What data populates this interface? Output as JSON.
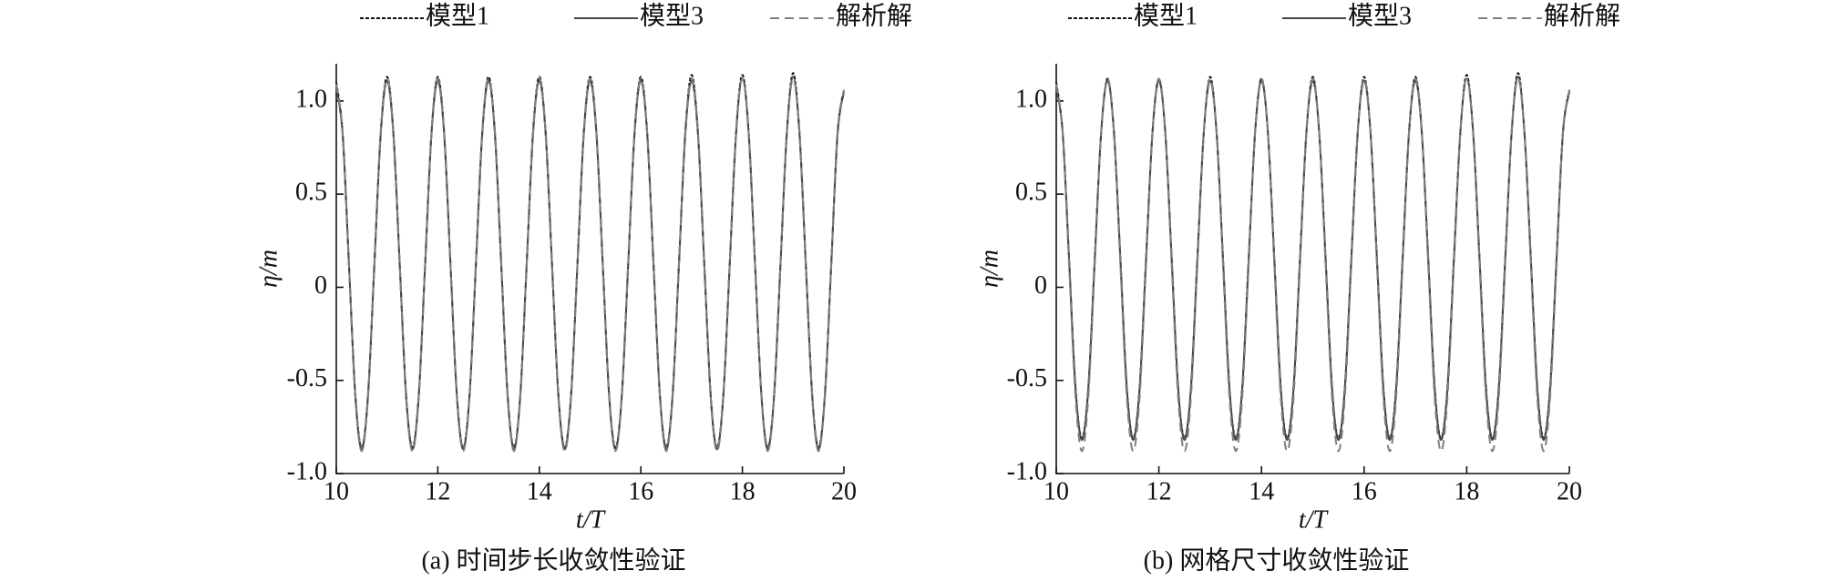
{
  "chart_data": [
    {
      "type": "line",
      "caption": "(a) 时间步长收敛性验证",
      "xlabel": "t/T",
      "ylabel": "η/m",
      "xlim": [
        10,
        20
      ],
      "ylim": [
        -1,
        1.2
      ],
      "xticks": [
        10,
        12,
        14,
        16,
        18,
        20
      ],
      "yticks": [
        {
          "value": -1,
          "label": "-1.0"
        },
        -0.5,
        0,
        0.5,
        {
          "value": 1,
          "label": "1.0"
        }
      ],
      "x": [
        10,
        10.125,
        10.25,
        10.375,
        10.5,
        10.625,
        10.75,
        10.875,
        11,
        11.125,
        11.25,
        11.375,
        11.5,
        11.625,
        11.75,
        11.875,
        12,
        12.125,
        12.25,
        12.375,
        12.5,
        12.625,
        12.75,
        12.875,
        13,
        13.125,
        13.25,
        13.375,
        13.5,
        13.625,
        13.75,
        13.875,
        14,
        14.125,
        14.25,
        14.375,
        14.5,
        14.625,
        14.75,
        14.875,
        15,
        15.125,
        15.25,
        15.375,
        15.5,
        15.625,
        15.75,
        15.875,
        16,
        16.125,
        16.25,
        16.375,
        16.5,
        16.625,
        16.75,
        16.875,
        17,
        17.125,
        17.25,
        17.375,
        17.5,
        17.625,
        17.75,
        17.875,
        18,
        18.125,
        18.25,
        18.375,
        18.5,
        18.625,
        18.75,
        18.875,
        19,
        19.125,
        19.25,
        19.375,
        19.5,
        19.625,
        19.75,
        19.875,
        20
      ],
      "series": [
        {
          "name": "模型1",
          "color": "#111111",
          "dash": "4 2",
          "values": [
            1.1,
            0.83,
            0.12,
            -0.58,
            -0.86,
            -0.58,
            0.12,
            0.83,
            1.13,
            0.83,
            0.12,
            -0.58,
            -0.86,
            -0.58,
            0.12,
            0.83,
            1.13,
            0.83,
            0.12,
            -0.58,
            -0.86,
            -0.58,
            0.12,
            0.83,
            1.13,
            0.83,
            0.12,
            -0.58,
            -0.86,
            -0.58,
            0.12,
            0.83,
            1.13,
            0.83,
            0.12,
            -0.58,
            -0.86,
            -0.58,
            0.12,
            0.83,
            1.13,
            0.83,
            0.12,
            -0.58,
            -0.86,
            -0.58,
            0.12,
            0.83,
            1.13,
            0.83,
            0.12,
            -0.58,
            -0.86,
            -0.58,
            0.12,
            0.83,
            1.14,
            0.83,
            0.12,
            -0.58,
            -0.86,
            -0.58,
            0.12,
            0.83,
            1.14,
            0.83,
            0.12,
            -0.58,
            -0.86,
            -0.58,
            0.12,
            0.83,
            1.15,
            0.83,
            0.12,
            -0.58,
            -0.86,
            -0.58,
            0.12,
            0.83,
            1.06
          ]
        },
        {
          "name": "模型3",
          "color": "#444a4c",
          "dash": "",
          "values": [
            1.08,
            0.82,
            0.12,
            -0.58,
            -0.87,
            -0.58,
            0.12,
            0.82,
            1.11,
            0.82,
            0.12,
            -0.58,
            -0.87,
            -0.58,
            0.12,
            0.82,
            1.11,
            0.82,
            0.12,
            -0.58,
            -0.87,
            -0.58,
            0.12,
            0.82,
            1.11,
            0.82,
            0.12,
            -0.58,
            -0.87,
            -0.58,
            0.12,
            0.82,
            1.11,
            0.82,
            0.12,
            -0.58,
            -0.87,
            -0.58,
            0.12,
            0.82,
            1.11,
            0.82,
            0.12,
            -0.58,
            -0.87,
            -0.58,
            0.12,
            0.82,
            1.11,
            0.82,
            0.12,
            -0.58,
            -0.87,
            -0.58,
            0.12,
            0.82,
            1.11,
            0.82,
            0.12,
            -0.58,
            -0.87,
            -0.58,
            0.12,
            0.82,
            1.12,
            0.82,
            0.12,
            -0.58,
            -0.87,
            -0.58,
            0.12,
            0.82,
            1.13,
            0.82,
            0.12,
            -0.58,
            -0.87,
            -0.58,
            0.12,
            0.82,
            1.05
          ]
        },
        {
          "name": "解析解",
          "color": "#7a8088",
          "dash": "10 6",
          "values": [
            1.09,
            0.83,
            0.12,
            -0.59,
            -0.88,
            -0.59,
            0.12,
            0.83,
            1.12,
            0.83,
            0.12,
            -0.59,
            -0.88,
            -0.59,
            0.12,
            0.83,
            1.12,
            0.83,
            0.12,
            -0.59,
            -0.88,
            -0.59,
            0.12,
            0.83,
            1.12,
            0.83,
            0.12,
            -0.59,
            -0.88,
            -0.59,
            0.12,
            0.83,
            1.12,
            0.83,
            0.12,
            -0.59,
            -0.88,
            -0.59,
            0.12,
            0.83,
            1.12,
            0.83,
            0.12,
            -0.59,
            -0.88,
            -0.59,
            0.12,
            0.83,
            1.12,
            0.83,
            0.12,
            -0.59,
            -0.88,
            -0.59,
            0.12,
            0.83,
            1.12,
            0.83,
            0.12,
            -0.59,
            -0.88,
            -0.59,
            0.12,
            0.83,
            1.12,
            0.83,
            0.12,
            -0.59,
            -0.88,
            -0.59,
            0.12,
            0.83,
            1.12,
            0.83,
            0.12,
            -0.59,
            -0.88,
            -0.59,
            0.12,
            0.83,
            1.06
          ]
        }
      ]
    },
    {
      "type": "line",
      "caption": "(b) 网格尺寸收敛性验证",
      "xlabel": "t/T",
      "ylabel": "η/m",
      "xlim": [
        10,
        20
      ],
      "ylim": [
        -1,
        1.2
      ],
      "xticks": [
        10,
        12,
        14,
        16,
        18,
        20
      ],
      "yticks": [
        {
          "value": -1,
          "label": "-1.0"
        },
        -0.5,
        0,
        0.5,
        {
          "value": 1,
          "label": "1.0"
        }
      ],
      "x": [
        10,
        10.125,
        10.25,
        10.375,
        10.5,
        10.625,
        10.75,
        10.875,
        11,
        11.125,
        11.25,
        11.375,
        11.5,
        11.625,
        11.75,
        11.875,
        12,
        12.125,
        12.25,
        12.375,
        12.5,
        12.625,
        12.75,
        12.875,
        13,
        13.125,
        13.25,
        13.375,
        13.5,
        13.625,
        13.75,
        13.875,
        14,
        14.125,
        14.25,
        14.375,
        14.5,
        14.625,
        14.75,
        14.875,
        15,
        15.125,
        15.25,
        15.375,
        15.5,
        15.625,
        15.75,
        15.875,
        16,
        16.125,
        16.25,
        16.375,
        16.5,
        16.625,
        16.75,
        16.875,
        17,
        17.125,
        17.25,
        17.375,
        17.5,
        17.625,
        17.75,
        17.875,
        18,
        18.125,
        18.25,
        18.375,
        18.5,
        18.625,
        18.75,
        18.875,
        19,
        19.125,
        19.25,
        19.375,
        19.5,
        19.625,
        19.75,
        19.875,
        20
      ],
      "series": [
        {
          "name": "模型1",
          "color": "#111111",
          "dash": "4 2",
          "values": [
            1.1,
            0.83,
            0.15,
            -0.54,
            -0.81,
            -0.54,
            0.15,
            0.83,
            1.12,
            0.83,
            0.15,
            -0.54,
            -0.81,
            -0.54,
            0.15,
            0.83,
            1.12,
            0.83,
            0.15,
            -0.54,
            -0.81,
            -0.54,
            0.15,
            0.83,
            1.13,
            0.83,
            0.15,
            -0.54,
            -0.81,
            -0.54,
            0.15,
            0.83,
            1.12,
            0.83,
            0.15,
            -0.54,
            -0.81,
            -0.54,
            0.15,
            0.83,
            1.13,
            0.83,
            0.15,
            -0.54,
            -0.81,
            -0.54,
            0.15,
            0.83,
            1.13,
            0.83,
            0.15,
            -0.54,
            -0.81,
            -0.54,
            0.15,
            0.83,
            1.13,
            0.83,
            0.15,
            -0.54,
            -0.81,
            -0.54,
            0.15,
            0.83,
            1.14,
            0.83,
            0.15,
            -0.54,
            -0.81,
            -0.54,
            0.15,
            0.83,
            1.15,
            0.83,
            0.15,
            -0.54,
            -0.81,
            -0.54,
            0.15,
            0.83,
            1.06
          ]
        },
        {
          "name": "模型3",
          "color": "#444a4c",
          "dash": "",
          "values": [
            1.08,
            0.83,
            0.15,
            -0.54,
            -0.82,
            -0.54,
            0.15,
            0.83,
            1.11,
            0.83,
            0.15,
            -0.54,
            -0.82,
            -0.54,
            0.15,
            0.83,
            1.11,
            0.83,
            0.15,
            -0.54,
            -0.82,
            -0.54,
            0.15,
            0.83,
            1.11,
            0.83,
            0.15,
            -0.54,
            -0.82,
            -0.54,
            0.15,
            0.83,
            1.11,
            0.83,
            0.15,
            -0.54,
            -0.82,
            -0.54,
            0.15,
            0.83,
            1.11,
            0.83,
            0.15,
            -0.54,
            -0.82,
            -0.54,
            0.15,
            0.83,
            1.11,
            0.83,
            0.15,
            -0.54,
            -0.82,
            -0.54,
            0.15,
            0.83,
            1.11,
            0.83,
            0.15,
            -0.54,
            -0.82,
            -0.54,
            0.15,
            0.83,
            1.12,
            0.83,
            0.15,
            -0.54,
            -0.82,
            -0.54,
            0.15,
            0.83,
            1.13,
            0.83,
            0.15,
            -0.54,
            -0.82,
            -0.54,
            0.15,
            0.83,
            1.05
          ]
        },
        {
          "name": "解析解",
          "color": "#7a8088",
          "dash": "10 6",
          "values": [
            1.09,
            0.83,
            0.12,
            -0.59,
            -0.88,
            -0.59,
            0.12,
            0.83,
            1.12,
            0.83,
            0.12,
            -0.59,
            -0.88,
            -0.59,
            0.12,
            0.83,
            1.12,
            0.83,
            0.12,
            -0.59,
            -0.88,
            -0.59,
            0.12,
            0.83,
            1.12,
            0.83,
            0.12,
            -0.59,
            -0.88,
            -0.59,
            0.12,
            0.83,
            1.12,
            0.83,
            0.12,
            -0.59,
            -0.88,
            -0.59,
            0.12,
            0.83,
            1.12,
            0.83,
            0.12,
            -0.59,
            -0.88,
            -0.59,
            0.12,
            0.83,
            1.12,
            0.83,
            0.12,
            -0.59,
            -0.88,
            -0.59,
            0.12,
            0.83,
            1.12,
            0.83,
            0.12,
            -0.59,
            -0.88,
            -0.59,
            0.12,
            0.83,
            1.12,
            0.83,
            0.12,
            -0.59,
            -0.88,
            -0.59,
            0.12,
            0.83,
            1.12,
            0.83,
            0.12,
            -0.59,
            -0.88,
            -0.59,
            0.12,
            0.83,
            1.06
          ]
        }
      ]
    }
  ]
}
